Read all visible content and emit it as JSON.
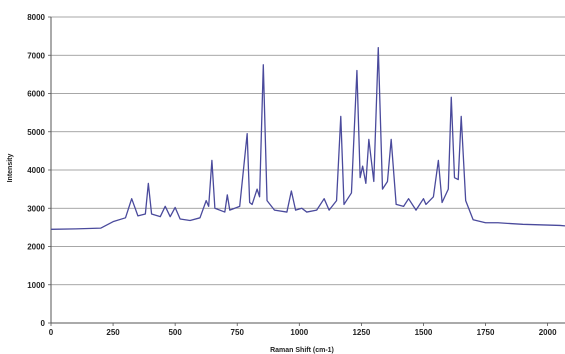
{
  "chart_data": {
    "type": "line",
    "title": "",
    "xlabel": "Raman Shift (cm-1)",
    "ylabel": "Intensity",
    "xlim": [
      0,
      2070
    ],
    "ylim": [
      0,
      8000
    ],
    "x_ticks": [
      0,
      250,
      500,
      750,
      1000,
      1250,
      1500,
      1750,
      2000
    ],
    "y_ticks": [
      0,
      1000,
      2000,
      3000,
      4000,
      5000,
      6000,
      7000,
      8000
    ],
    "grid": "horizontal",
    "legend": "none",
    "line_color": "#4a4a9c",
    "series": [
      {
        "x": [
          0,
          100,
          200,
          250,
          300,
          325,
          350,
          380,
          392,
          405,
          440,
          460,
          480,
          500,
          520,
          560,
          600,
          625,
          635,
          648,
          660,
          700,
          710,
          720,
          760,
          790,
          800,
          810,
          830,
          840,
          855,
          870,
          900,
          950,
          968,
          985,
          1010,
          1030,
          1070,
          1100,
          1120,
          1150,
          1167,
          1180,
          1210,
          1232,
          1245,
          1255,
          1268,
          1280,
          1300,
          1318,
          1335,
          1355,
          1370,
          1390,
          1420,
          1440,
          1470,
          1500,
          1510,
          1540,
          1560,
          1575,
          1600,
          1612,
          1625,
          1640,
          1652,
          1670,
          1700,
          1750,
          1800,
          1850,
          1900,
          1950,
          2000,
          2050,
          2070
        ],
        "y": [
          2450,
          2460,
          2480,
          2650,
          2750,
          3250,
          2800,
          2850,
          3650,
          2850,
          2780,
          3050,
          2780,
          3020,
          2720,
          2680,
          2750,
          3200,
          3050,
          4250,
          3000,
          2900,
          3350,
          2950,
          3050,
          4950,
          3150,
          3100,
          3500,
          3300,
          6750,
          3200,
          2950,
          2900,
          3450,
          2950,
          3000,
          2900,
          2950,
          3250,
          2950,
          3200,
          5400,
          3100,
          3400,
          6600,
          3800,
          4100,
          3650,
          4800,
          3700,
          7200,
          3500,
          3700,
          4800,
          3100,
          3050,
          3250,
          2950,
          3250,
          3100,
          3300,
          4250,
          3150,
          3500,
          5900,
          3800,
          3750,
          5400,
          3200,
          2700,
          2620,
          2620,
          2600,
          2580,
          2570,
          2560,
          2550,
          2540
        ]
      }
    ]
  }
}
